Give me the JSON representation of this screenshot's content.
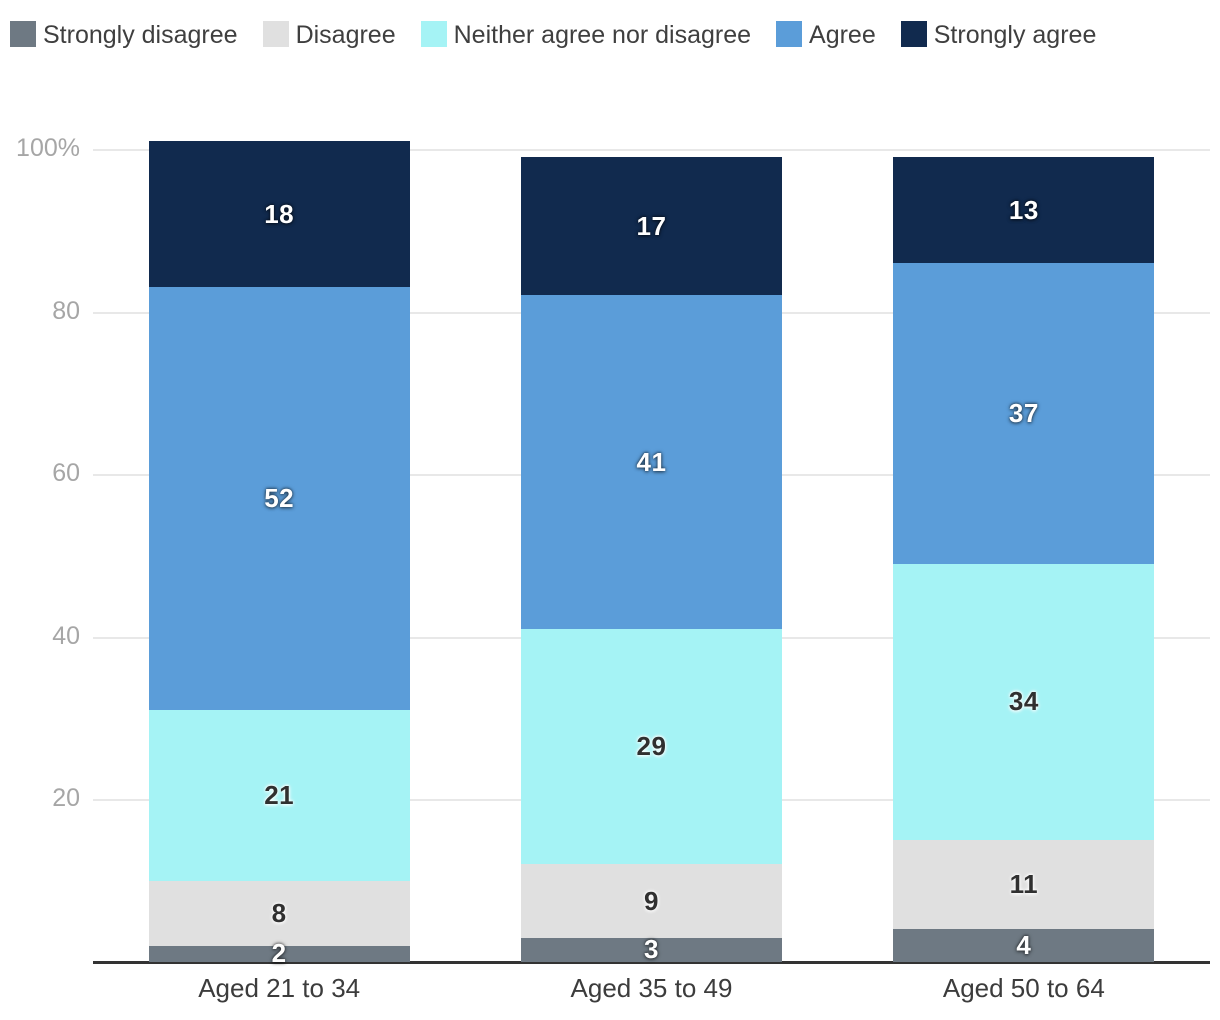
{
  "legend": {
    "position": "top",
    "items": [
      {
        "label": "Strongly disagree",
        "color": "#6e7983"
      },
      {
        "label": "Disagree",
        "color": "#e0e0e0"
      },
      {
        "label": "Neither agree nor disagree",
        "color": "#a5f3f5"
      },
      {
        "label": "Agree",
        "color": "#5b9dd9"
      },
      {
        "label": "Strongly agree",
        "color": "#112a4e"
      }
    ]
  },
  "chart_data": {
    "type": "bar",
    "stacked": true,
    "orientation": "vertical",
    "categories": [
      "Aged 21 to 34",
      "Aged 35 to 49",
      "Aged 50 to 64"
    ],
    "series": [
      {
        "name": "Strongly disagree",
        "color": "#6e7983",
        "label_style": "light",
        "values": [
          2,
          3,
          4
        ]
      },
      {
        "name": "Disagree",
        "color": "#e0e0e0",
        "label_style": "dark",
        "values": [
          8,
          9,
          11
        ]
      },
      {
        "name": "Neither agree nor disagree",
        "color": "#a5f3f5",
        "label_style": "dark",
        "values": [
          21,
          29,
          34
        ]
      },
      {
        "name": "Agree",
        "color": "#5b9dd9",
        "label_style": "light",
        "values": [
          52,
          41,
          37
        ]
      },
      {
        "name": "Strongly agree",
        "color": "#112a4e",
        "label_style": "light",
        "values": [
          18,
          17,
          13
        ]
      }
    ],
    "stack_totals": [
      101,
      99,
      99
    ],
    "y_axis": {
      "ticks": [
        "100%",
        "80",
        "60",
        "40",
        "20"
      ],
      "tick_values": [
        100,
        80,
        60,
        40,
        20
      ],
      "max": 100,
      "unit": "%"
    },
    "grid": true,
    "gridline_color": "#e8e8e8",
    "axis_line_color": "#333333",
    "legend_position": "top"
  }
}
